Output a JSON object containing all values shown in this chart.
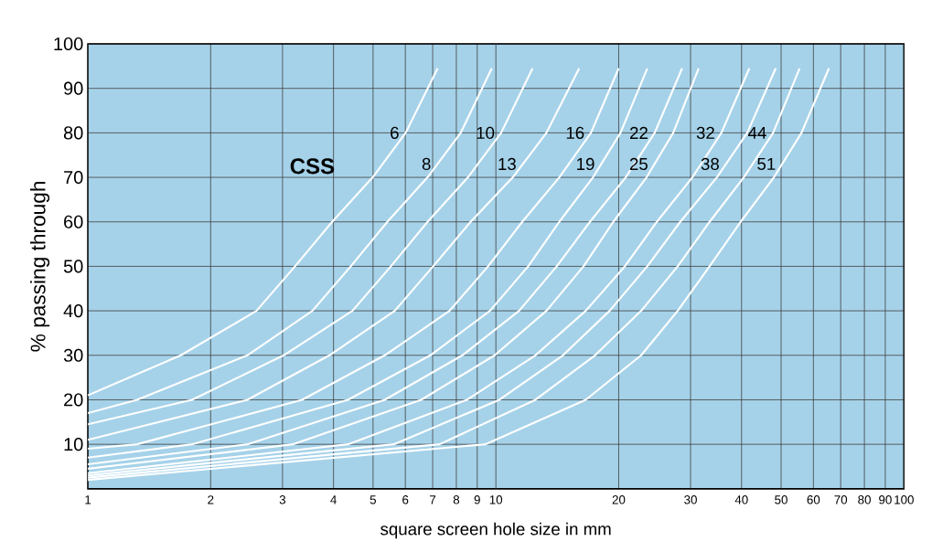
{
  "chart_data": {
    "type": "line",
    "xlabel": "square screen hole size in mm",
    "ylabel": "% passing through",
    "log": "x",
    "grid": true,
    "marker": "none",
    "line_style": "solid",
    "xlim": [
      1,
      100
    ],
    "ylim": [
      0,
      100
    ],
    "xticks": [
      1,
      2,
      3,
      4,
      5,
      6,
      7,
      8,
      9,
      10,
      20,
      30,
      40,
      50,
      60,
      70,
      80,
      90,
      100
    ],
    "yticks": [
      10,
      20,
      30,
      40,
      50,
      60,
      70,
      80,
      90,
      100
    ],
    "series": [
      {
        "name": "6",
        "color": "#ffffff",
        "x": [
          1,
          1.69,
          2.59,
          3.22,
          3.97,
          4.99,
          6.01,
          7.2
        ],
        "values": [
          21,
          30,
          40,
          50,
          60,
          70,
          80,
          94.5
        ]
      },
      {
        "name": "8",
        "color": "#ffffff",
        "x": [
          1,
          1.32,
          2.46,
          3.55,
          4.41,
          5.42,
          6.8,
          8.2,
          9.77
        ],
        "values": [
          17,
          20,
          30,
          40,
          50,
          60,
          70,
          80,
          94.5
        ]
      },
      {
        "name": "10",
        "color": "#ffffff",
        "x": [
          1,
          1.8,
          3.02,
          4.45,
          5.53,
          6.8,
          8.54,
          10.3,
          12.3
        ],
        "values": [
          14.5,
          20,
          30,
          40,
          50,
          60,
          70,
          80,
          94.5
        ]
      },
      {
        "name": "13",
        "color": "#ffffff",
        "x": [
          1,
          2.46,
          3.91,
          5.65,
          7.02,
          8.67,
          11,
          13.3,
          16
        ],
        "values": [
          11,
          20,
          30,
          40,
          50,
          60,
          70,
          80,
          94.5
        ]
      },
      {
        "name": "16",
        "color": "#ffffff",
        "x": [
          1,
          1.32,
          3.35,
          5.34,
          7.7,
          9.57,
          11.6,
          14.3,
          17.1,
          20
        ],
        "values": [
          9,
          10,
          20,
          30,
          40,
          50,
          60,
          70,
          80,
          94.5
        ]
      },
      {
        "name": "19",
        "color": "#ffffff",
        "x": [
          1,
          1.8,
          4.34,
          6.91,
          9.67,
          12,
          14.3,
          17.3,
          20.2,
          23.5
        ],
        "values": [
          7,
          10,
          20,
          30,
          40,
          50,
          60,
          70,
          80,
          94.5
        ]
      },
      {
        "name": "22",
        "color": "#ffffff",
        "x": [
          1,
          2.46,
          5.34,
          8.28,
          11.4,
          14.1,
          17,
          20.8,
          24.5,
          28.6
        ],
        "values": [
          5.5,
          10,
          20,
          30,
          40,
          50,
          60,
          70,
          80,
          94.5
        ]
      },
      {
        "name": "25",
        "color": "#ffffff",
        "x": [
          1,
          3.18,
          6.56,
          9.93,
          13.3,
          16.4,
          19.4,
          23.4,
          27.2,
          31.4
        ],
        "values": [
          4.5,
          10,
          20,
          30,
          40,
          50,
          60,
          70,
          80,
          94.5
        ]
      },
      {
        "name": "32",
        "color": "#ffffff",
        "x": [
          1,
          4.34,
          8.5,
          12.5,
          16.6,
          20.7,
          24.8,
          30.3,
          35.7,
          41.8
        ],
        "values": [
          3.5,
          10,
          20,
          30,
          40,
          50,
          60,
          70,
          80,
          94.5
        ]
      },
      {
        "name": "38",
        "color": "#ffffff",
        "x": [
          1,
          5.62,
          10.2,
          14.6,
          19,
          23.5,
          28.3,
          34.8,
          41.3,
          48.5
        ],
        "values": [
          3,
          10,
          20,
          30,
          40,
          50,
          60,
          70,
          80,
          94.5
        ]
      },
      {
        "name": "44",
        "color": "#ffffff",
        "x": [
          1,
          7.28,
          12.5,
          17.5,
          22.7,
          27.9,
          33.4,
          40.5,
          47.8,
          55.5
        ],
        "values": [
          2.5,
          10,
          20,
          30,
          40,
          50,
          60,
          70,
          80,
          94.5
        ]
      },
      {
        "name": "51",
        "color": "#ffffff",
        "x": [
          1,
          9.42,
          16.6,
          22.7,
          27.9,
          33.4,
          39.8,
          48,
          56.1,
          65.5
        ],
        "values": [
          2,
          10,
          20,
          30,
          40,
          50,
          60,
          70,
          80,
          94.5
        ]
      }
    ],
    "annotations": [
      "CSS"
    ]
  }
}
